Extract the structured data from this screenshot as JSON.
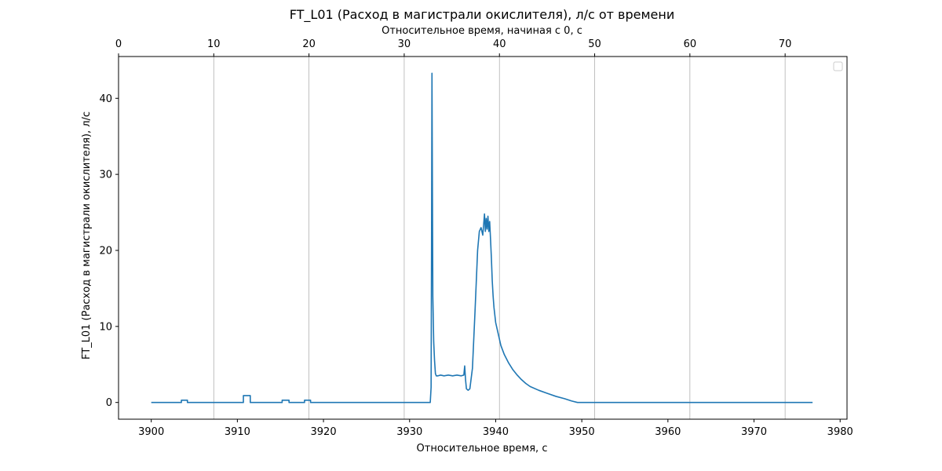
{
  "chart_data": {
    "type": "line",
    "title": "FT_L01 (Расход в магистрали окислителя), л/с от времени",
    "xlabel": "Относительное время, с",
    "ylabel": "FT_L01 (Расход в магистрали окислителя), л/с",
    "top_xlabel": "Относительное время, начиная с 0, с",
    "xlim": [
      3896.2,
      3980.8
    ],
    "ylim": [
      -2.2,
      45.5
    ],
    "xticks": [
      3900,
      3910,
      3920,
      3930,
      3940,
      3950,
      3960,
      3970,
      3980
    ],
    "yticks": [
      0,
      10,
      20,
      30,
      40
    ],
    "top_xlim": [
      0,
      76.5
    ],
    "top_xticks": [
      0,
      10,
      20,
      30,
      40,
      50,
      60,
      70
    ],
    "grid": "vertical, top axis ticks",
    "legend": "top-right, empty",
    "color": "#1f77b4",
    "series": [
      {
        "x": [
          3900.0,
          3903.5,
          3903.5,
          3904.2,
          3904.2,
          3910.7,
          3910.7,
          3911.5,
          3911.5,
          3915.2,
          3915.2,
          3916.0,
          3916.0,
          3917.8,
          3917.8,
          3918.5,
          3918.5,
          3932.4,
          3932.5,
          3932.55,
          3932.6,
          3932.7,
          3932.8,
          3932.9,
          3933.0,
          3933.1,
          3933.3,
          3933.6,
          3934.0,
          3934.5,
          3935.0,
          3935.5,
          3936.0,
          3936.3,
          3936.4,
          3936.5,
          3936.6,
          3936.8,
          3937.0,
          3937.3,
          3937.6,
          3937.9,
          3938.1,
          3938.3,
          3938.5,
          3938.7,
          3938.8,
          3938.9,
          3939.0,
          3939.1,
          3939.2,
          3939.3,
          3939.4,
          3939.5,
          3939.6,
          3939.7,
          3939.8,
          3940.0,
          3940.3,
          3940.6,
          3941.0,
          3941.5,
          3942.0,
          3942.5,
          3943.0,
          3943.5,
          3944.0,
          3945.0,
          3946.0,
          3947.0,
          3948.0,
          3948.8,
          3949.5,
          3950.0,
          3960.0,
          3970.0,
          3976.8
        ],
        "y": [
          0.0,
          0.0,
          0.3,
          0.3,
          0.0,
          0.0,
          0.9,
          0.9,
          0.0,
          0.0,
          0.3,
          0.3,
          0.0,
          0.0,
          0.3,
          0.3,
          0.0,
          0.0,
          2.0,
          20.0,
          43.3,
          14.0,
          8.0,
          5.5,
          3.8,
          3.5,
          3.5,
          3.6,
          3.5,
          3.6,
          3.5,
          3.6,
          3.5,
          3.6,
          4.8,
          3.0,
          1.8,
          1.6,
          1.8,
          4.5,
          12.0,
          20.0,
          22.5,
          23.0,
          22.0,
          24.8,
          22.5,
          24.2,
          22.8,
          24.5,
          22.5,
          23.8,
          21.5,
          19.0,
          16.0,
          14.0,
          12.5,
          10.5,
          9.0,
          7.5,
          6.3,
          5.2,
          4.3,
          3.6,
          3.0,
          2.5,
          2.1,
          1.6,
          1.2,
          0.8,
          0.5,
          0.2,
          0.0,
          0.0,
          0.0,
          0.0,
          0.0
        ]
      }
    ]
  }
}
